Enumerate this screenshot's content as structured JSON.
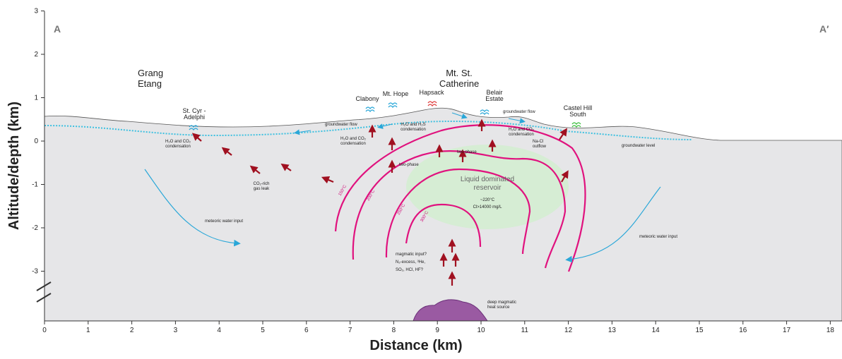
{
  "axes": {
    "xlabel": "Distance (km)",
    "ylabel": "Altitude/depth (km)",
    "xticks": [
      0,
      1,
      2,
      3,
      4,
      5,
      6,
      7,
      8,
      9,
      10,
      11,
      12,
      13,
      14,
      15,
      16,
      17,
      18
    ],
    "yticks": [
      3,
      2,
      1,
      0,
      -1,
      -2,
      -3
    ]
  },
  "section": {
    "start": "A",
    "end": "A′"
  },
  "places": {
    "grang_etang": [
      "Grang",
      "Etang"
    ],
    "mt_st_catherine": [
      "Mt. St.",
      "Catherine"
    ],
    "st_cyr": [
      "St. Cyr -",
      "Adelphi"
    ],
    "clabony": "Clabony",
    "mt_hope": "Mt. Hope",
    "hapsack": "Hapsack",
    "belair": [
      "Belair",
      "Estate"
    ],
    "castel_hill": [
      "Castel Hill",
      "South"
    ]
  },
  "annotations": {
    "groundwater_flow_left": "groundwater flow",
    "groundwater_flow_right": "groundwater flow",
    "groundwater_level": "groundwater level",
    "cond_left": [
      "H₂O and CO₂",
      "condensation"
    ],
    "cond_h2s": [
      "H₂O and H₂S",
      "condensation"
    ],
    "cond_mid": [
      "H₂O and CO₂",
      "condensation"
    ],
    "cond_right": [
      "H₂O and CO₂",
      "condensation"
    ],
    "nacl": [
      "Na-Cl",
      "outflow"
    ],
    "gas_leak": [
      "CO₂-rich",
      "gas leak"
    ],
    "two_phase_left": "two-phase",
    "two_phase_right": "two-phase",
    "reservoir": [
      "Liquid dominated",
      "reservoir"
    ],
    "temp": "~220°C",
    "chloride": "Cl>14000 mg/L",
    "meteoric_left": "meteoric water input",
    "meteoric_right": "meteoric water input",
    "magmatic": [
      "magmatic input?",
      "N₂-excess, ³He,",
      "SO₂, HCl, HF?"
    ],
    "heat_source": [
      "deep magmatic",
      "heat source"
    ],
    "iso150": "150°C",
    "iso200": "200°C",
    "iso250": "250°C",
    "iso300": "300°C"
  }
}
